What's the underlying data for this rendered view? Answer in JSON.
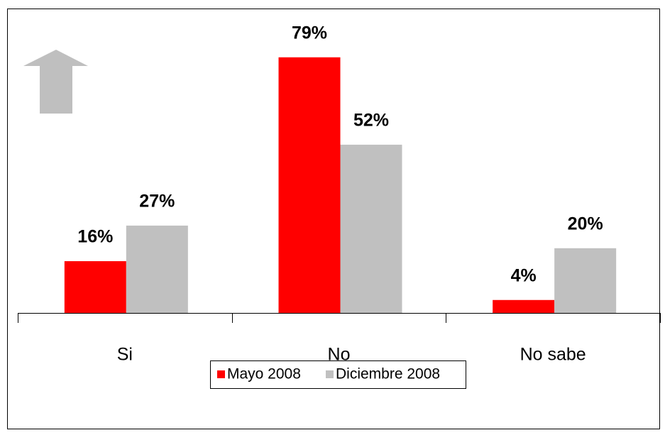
{
  "chart_data": {
    "type": "bar",
    "categories": [
      "Si",
      "No",
      "No sabe"
    ],
    "series": [
      {
        "name": "Mayo 2008",
        "color": "#ff0000",
        "values": [
          16,
          79,
          4
        ],
        "value_labels": [
          "16%",
          "79%",
          "4%"
        ]
      },
      {
        "name": "Diciembre 2008",
        "color": "#c0c0c0",
        "values": [
          27,
          52,
          20
        ],
        "value_labels": [
          "27%",
          "52%",
          "20%"
        ]
      }
    ],
    "legend": "bottom"
  }
}
